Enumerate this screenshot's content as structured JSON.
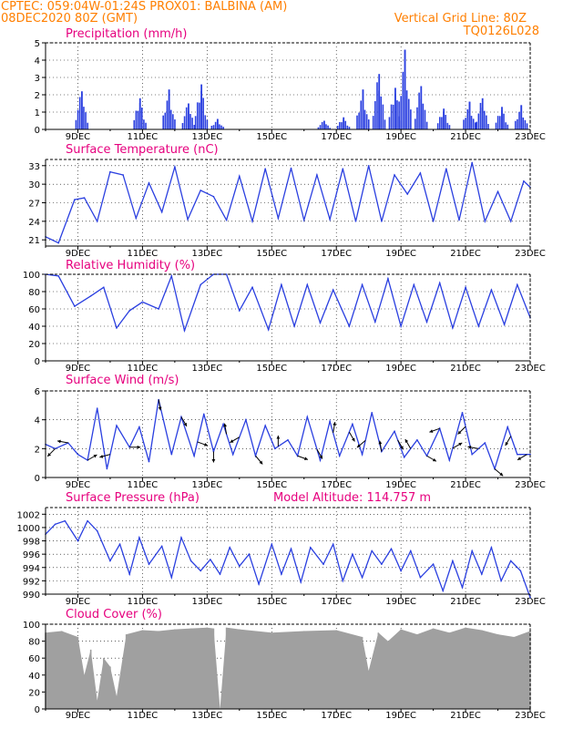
{
  "header": {
    "line1_left": "CPTEC:  059:04W-01:24S  PROX01: BALBINA (AM)",
    "line2_left": "08DEC2020 80Z (GMT)",
    "line2_right": "Vertical Grid Line: 80Z",
    "line3_right": "TQ0126L028"
  },
  "colors": {
    "series": "#2a3fe0",
    "title": "#e6007e",
    "header": "#ff7f00",
    "cloud": "#a0a0a0"
  },
  "x_ticks": [
    "9DEC",
    "11DEC",
    "13DEC",
    "15DEC",
    "17DEC",
    "19DEC",
    "21DEC",
    "23DEC"
  ],
  "chart_data": [
    {
      "type": "bar",
      "title": "Precipitation (mm/h)",
      "ylim": [
        0,
        5
      ],
      "yticks": [
        0,
        1,
        2,
        3,
        4,
        5
      ],
      "clusters": [
        {
          "day": 9.1,
          "max": 2.2
        },
        {
          "day": 10.9,
          "max": 1.8
        },
        {
          "day": 11.8,
          "max": 2.3
        },
        {
          "day": 12.4,
          "max": 1.5
        },
        {
          "day": 12.8,
          "max": 2.6
        },
        {
          "day": 13.3,
          "max": 0.6
        },
        {
          "day": 16.6,
          "max": 0.5
        },
        {
          "day": 17.2,
          "max": 0.7
        },
        {
          "day": 17.8,
          "max": 2.3
        },
        {
          "day": 18.3,
          "max": 3.2
        },
        {
          "day": 18.8,
          "max": 2.4
        },
        {
          "day": 19.1,
          "max": 4.6
        },
        {
          "day": 19.6,
          "max": 2.5
        },
        {
          "day": 20.3,
          "max": 1.2
        },
        {
          "day": 21.1,
          "max": 1.6
        },
        {
          "day": 21.5,
          "max": 1.8
        },
        {
          "day": 22.1,
          "max": 1.3
        },
        {
          "day": 22.7,
          "max": 1.4
        }
      ]
    },
    {
      "type": "line",
      "title": "Surface Temperature (nC)",
      "ylim": [
        20,
        34
      ],
      "yticks": [
        21,
        24,
        27,
        30,
        33
      ],
      "x": [
        8.0,
        8.4,
        8.9,
        9.2,
        9.6,
        10.0,
        10.4,
        10.8,
        11.2,
        11.6,
        12.0,
        12.4,
        12.8,
        13.2,
        13.6,
        14.0,
        14.4,
        14.8,
        15.2,
        15.6,
        16.0,
        16.4,
        16.8,
        17.2,
        17.6,
        18.0,
        18.4,
        18.8,
        19.2,
        19.6,
        20.0,
        20.4,
        20.8,
        21.2,
        21.6,
        22.0,
        22.4,
        22.8,
        23.0
      ],
      "values": [
        21.5,
        20.5,
        27.5,
        27.8,
        24.0,
        32.0,
        31.5,
        24.5,
        30.2,
        25.5,
        32.8,
        24.3,
        29.0,
        28.0,
        24.2,
        31.3,
        24.0,
        32.5,
        24.5,
        32.6,
        24.2,
        31.5,
        24.3,
        32.5,
        24.0,
        33.0,
        24.0,
        31.5,
        28.4,
        31.8,
        24.0,
        32.5,
        24.2,
        33.5,
        24.0,
        28.8,
        24.0,
        30.5,
        29.5
      ]
    },
    {
      "type": "line",
      "title": "Relative Humidity (%)",
      "ylim": [
        0,
        100
      ],
      "yticks": [
        0,
        20,
        40,
        60,
        80,
        100
      ],
      "x": [
        8.0,
        8.4,
        8.9,
        9.4,
        9.8,
        10.2,
        10.6,
        11.0,
        11.5,
        11.9,
        12.3,
        12.8,
        13.2,
        13.6,
        14.0,
        14.4,
        14.9,
        15.3,
        15.7,
        16.1,
        16.5,
        16.9,
        17.4,
        17.8,
        18.2,
        18.6,
        19.0,
        19.4,
        19.8,
        20.2,
        20.6,
        21.0,
        21.4,
        21.8,
        22.2,
        22.6,
        23.0
      ],
      "values": [
        100,
        98,
        63,
        75,
        85,
        38,
        58,
        68,
        60,
        98,
        35,
        88,
        100,
        100,
        58,
        85,
        36,
        88,
        40,
        88,
        44,
        82,
        40,
        88,
        45,
        95,
        40,
        88,
        45,
        90,
        38,
        85,
        40,
        82,
        42,
        88,
        50
      ]
    },
    {
      "type": "line",
      "title": "Surface Wind (m/s)",
      "ylim": [
        0,
        6
      ],
      "yticks": [
        0,
        2,
        4,
        6
      ],
      "x": [
        8.0,
        8.3,
        8.7,
        9.0,
        9.3,
        9.6,
        9.9,
        10.2,
        10.6,
        10.9,
        11.2,
        11.5,
        11.9,
        12.2,
        12.6,
        12.9,
        13.2,
        13.5,
        13.8,
        14.2,
        14.5,
        14.8,
        15.1,
        15.5,
        15.8,
        16.1,
        16.5,
        16.8,
        17.1,
        17.5,
        17.8,
        18.1,
        18.4,
        18.8,
        19.1,
        19.5,
        19.8,
        20.2,
        20.5,
        20.9,
        21.2,
        21.6,
        21.9,
        22.3,
        22.6,
        23.0
      ],
      "values": [
        2.3,
        2.0,
        2.4,
        1.6,
        1.2,
        4.8,
        0.6,
        3.6,
        2.1,
        3.5,
        1.1,
        5.4,
        1.6,
        4.2,
        1.5,
        4.4,
        1.8,
        3.7,
        1.6,
        4.0,
        1.5,
        3.6,
        2.0,
        2.6,
        1.5,
        4.2,
        1.2,
        3.9,
        1.5,
        3.7,
        1.6,
        4.5,
        1.8,
        3.2,
        1.4,
        2.6,
        1.5,
        3.4,
        1.2,
        4.5,
        1.6,
        2.4,
        0.6,
        3.5,
        1.6,
        1.6
      ],
      "arrows": [
        [
          8.3,
          -135
        ],
        [
          8.7,
          170
        ],
        [
          9.3,
          30
        ],
        [
          10.0,
          -165
        ],
        [
          10.6,
          0
        ],
        [
          11.5,
          -80
        ],
        [
          12.2,
          -60
        ],
        [
          12.7,
          -20
        ],
        [
          13.2,
          -90
        ],
        [
          13.6,
          100
        ],
        [
          14.0,
          -150
        ],
        [
          14.5,
          -50
        ],
        [
          15.2,
          90
        ],
        [
          15.8,
          -20
        ],
        [
          16.4,
          -60
        ],
        [
          16.9,
          80
        ],
        [
          17.4,
          -60
        ],
        [
          17.9,
          -140
        ],
        [
          18.4,
          100
        ],
        [
          18.9,
          -60
        ],
        [
          19.3,
          120
        ],
        [
          19.8,
          -30
        ],
        [
          20.2,
          -160
        ],
        [
          20.6,
          30
        ],
        [
          21.0,
          -135
        ],
        [
          21.4,
          170
        ],
        [
          21.9,
          -40
        ],
        [
          22.4,
          -120
        ],
        [
          22.9,
          -150
        ]
      ]
    },
    {
      "type": "line",
      "title": "Surface Pressure (hPa)",
      "annotation": "Model Altitude: 114.757 m",
      "ylim": [
        990,
        1003
      ],
      "yticks": [
        990,
        992,
        994,
        996,
        998,
        1000,
        1002
      ],
      "x": [
        8.0,
        8.3,
        8.6,
        9.0,
        9.3,
        9.6,
        10.0,
        10.3,
        10.6,
        10.9,
        11.2,
        11.6,
        11.9,
        12.2,
        12.5,
        12.8,
        13.1,
        13.4,
        13.7,
        14.0,
        14.3,
        14.6,
        15.0,
        15.3,
        15.6,
        15.9,
        16.2,
        16.6,
        16.9,
        17.2,
        17.5,
        17.8,
        18.1,
        18.4,
        18.7,
        19.0,
        19.3,
        19.6,
        20.0,
        20.3,
        20.6,
        20.9,
        21.2,
        21.5,
        21.8,
        22.1,
        22.4,
        22.7,
        23.0
      ],
      "values": [
        999.0,
        1000.5,
        1001.0,
        998.0,
        1001.0,
        999.5,
        995.0,
        997.5,
        993.0,
        998.5,
        994.5,
        997.2,
        992.5,
        998.5,
        995.0,
        993.5,
        995.2,
        993.0,
        997.0,
        994.2,
        996.0,
        991.5,
        997.5,
        993.0,
        996.8,
        991.8,
        997.0,
        994.5,
        997.5,
        992.0,
        996.0,
        992.5,
        996.5,
        994.5,
        996.8,
        993.5,
        996.5,
        992.5,
        994.5,
        990.5,
        995.0,
        991.0,
        996.5,
        993.0,
        997.0,
        992.0,
        995.0,
        993.5,
        989.5
      ]
    },
    {
      "type": "bar",
      "title": "Cloud Cover (%)",
      "ylim": [
        0,
        100
      ],
      "yticks": [
        0,
        20,
        40,
        60,
        80,
        100
      ],
      "x": [
        8.0,
        8.5,
        9.0,
        9.2,
        9.4,
        9.6,
        9.8,
        10.0,
        10.2,
        10.5,
        11.0,
        11.5,
        12.0,
        12.5,
        13.0,
        13.2,
        13.4,
        13.6,
        14.0,
        15.0,
        16.0,
        17.0,
        17.8,
        18.0,
        18.3,
        18.6,
        19.0,
        19.5,
        20.0,
        20.5,
        21.0,
        21.5,
        22.0,
        22.5,
        23.0
      ],
      "values": [
        90,
        92,
        85,
        40,
        70,
        10,
        60,
        50,
        15,
        88,
        93,
        92,
        94,
        95,
        96,
        95,
        0,
        96,
        94,
        90,
        92,
        93,
        85,
        45,
        90,
        80,
        94,
        88,
        95,
        90,
        96,
        93,
        88,
        85,
        92
      ]
    }
  ]
}
